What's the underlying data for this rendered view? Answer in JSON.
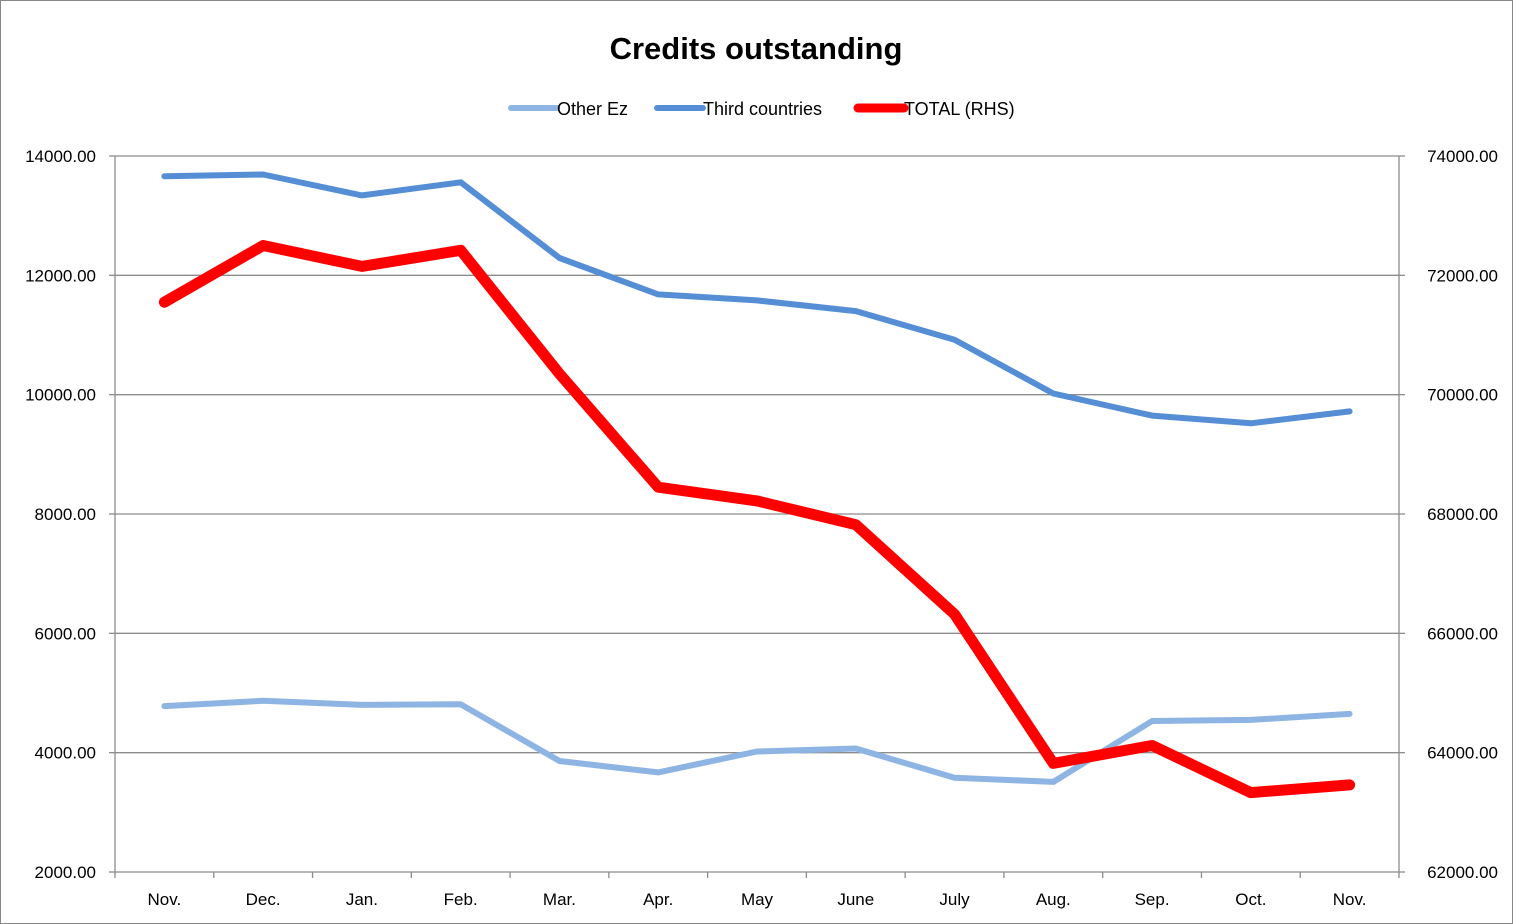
{
  "chart_data": {
    "type": "line",
    "title": "Credits outstanding",
    "categories": [
      "Nov.",
      "Dec.",
      "Jan.",
      "Feb.",
      "Mar.",
      "Apr.",
      "May",
      "June",
      "July",
      "Aug.",
      "Sep.",
      "Oct.",
      "Nov."
    ],
    "y_left": {
      "ylim": [
        2000,
        14000
      ],
      "ticks": [
        "2000.00",
        "4000.00",
        "6000.00",
        "8000.00",
        "10000.00",
        "12000.00",
        "14000.00"
      ]
    },
    "y_right": {
      "ylim": [
        62000,
        74000
      ],
      "ticks": [
        "62000.00",
        "64000.00",
        "66000.00",
        "68000.00",
        "70000.00",
        "72000.00",
        "74000.00"
      ]
    },
    "grid": true,
    "legend_position": "top",
    "series": [
      {
        "name": "Other Ez",
        "axis": "left",
        "color": "#8eb4e3",
        "values": [
          4780,
          4870,
          4800,
          4810,
          3860,
          3670,
          4020,
          4070,
          3580,
          3510,
          4530,
          4550,
          4650
        ]
      },
      {
        "name": "Third countries",
        "axis": "left",
        "color": "#558ed5",
        "values": [
          13660,
          13690,
          13340,
          13560,
          12290,
          11680,
          11580,
          11400,
          10920,
          10020,
          9650,
          9520,
          9720
        ]
      },
      {
        "name": "TOTAL (RHS)",
        "axis": "right",
        "color": "#ff0000",
        "values": [
          71550,
          72500,
          72150,
          72420,
          70350,
          68450,
          68220,
          67820,
          66320,
          63820,
          64120,
          63330,
          63460
        ]
      }
    ]
  }
}
